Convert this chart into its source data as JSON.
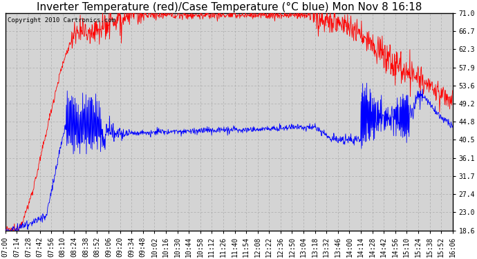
{
  "title": "Inverter Temperature (red)/Case Temperature (°C blue) Mon Nov 8 16:18",
  "copyright": "Copyright 2010 Cartronics.com",
  "yticks": [
    18.6,
    23.0,
    27.4,
    31.7,
    36.1,
    40.5,
    44.8,
    49.2,
    53.6,
    57.9,
    62.3,
    66.7,
    71.0
  ],
  "ymin": 18.6,
  "ymax": 71.0,
  "bg_color": "#ffffff",
  "plot_bg_color": "#d4d4d4",
  "grid_color": "#aaaaaa",
  "red_color": "#ff0000",
  "blue_color": "#0000ff",
  "title_fontsize": 11,
  "copyright_fontsize": 6.5,
  "tick_fontsize": 7
}
